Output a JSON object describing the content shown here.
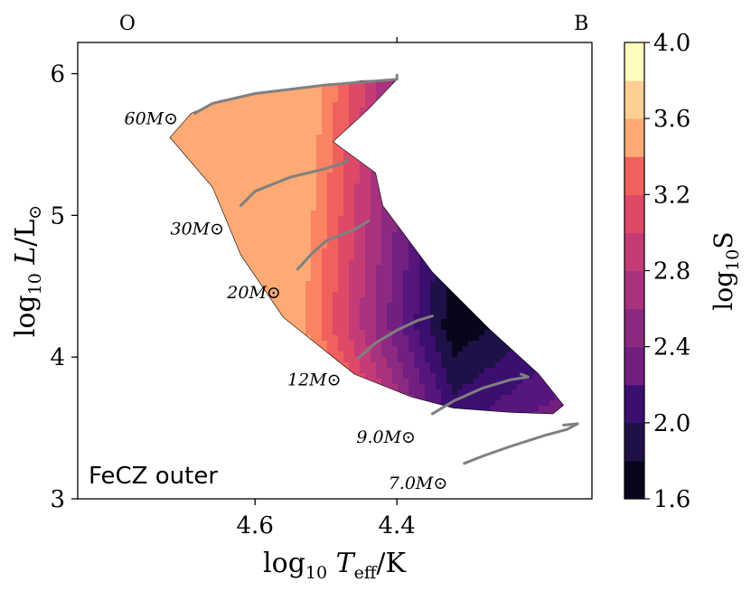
{
  "chart_data": {
    "type": "heatmap",
    "panel_label": "FeCZ outer",
    "xlabel": "log10 Teff/K",
    "ylabel": "log10 L/L⊙",
    "xlim": [
      4.85,
      4.125
    ],
    "ylim": [
      3.0,
      6.22
    ],
    "x_ticks": [
      4.6,
      4.4
    ],
    "x_tick_labels": [
      "4.6",
      "4.4"
    ],
    "y_ticks": [
      3,
      4,
      5,
      6
    ],
    "y_tick_labels": [
      "3",
      "4",
      "5",
      "6"
    ],
    "spectral_types": [
      {
        "label": "O",
        "logT": 4.78
      },
      {
        "label": "B",
        "logT": 4.14
      }
    ],
    "top_minor_tick_logT": 4.4,
    "colorbar": {
      "label": "log10S",
      "min": 1.6,
      "max": 4.0,
      "step": 0.2,
      "tick_values": [
        1.6,
        2.0,
        2.4,
        2.8,
        3.2,
        3.6,
        4.0
      ],
      "tick_labels": [
        "1.6",
        "2.0",
        "2.4",
        "2.8",
        "3.2",
        "3.6",
        "4.0"
      ],
      "level_colors": [
        "#08061d",
        "#1f1047",
        "#3b0f70",
        "#57157e",
        "#721f81",
        "#8c2981",
        "#a8327d",
        "#c43c75",
        "#de4968",
        "#f1605d",
        "#fa8362",
        "#feaa74",
        "#fecf92",
        "#fcfdbf"
      ]
    },
    "tracks": [
      {
        "label": "60M⊙",
        "points": [
          [
            4.685,
            5.72
          ],
          [
            4.66,
            5.79
          ],
          [
            4.6,
            5.86
          ],
          [
            4.5,
            5.92
          ],
          [
            4.4,
            5.96
          ],
          [
            4.4,
            5.99
          ]
        ]
      },
      {
        "label": "30M⊙",
        "points": [
          [
            4.62,
            5.07
          ],
          [
            4.6,
            5.17
          ],
          [
            4.55,
            5.27
          ],
          [
            4.5,
            5.33
          ],
          [
            4.47,
            5.38
          ],
          [
            4.47,
            5.4
          ]
        ]
      },
      {
        "label": "20M⊙",
        "points": [
          [
            4.54,
            4.62
          ],
          [
            4.52,
            4.73
          ],
          [
            4.5,
            4.82
          ],
          [
            4.46,
            4.9
          ],
          [
            4.44,
            4.96
          ]
        ]
      },
      {
        "label": "12M⊙",
        "points": [
          [
            4.455,
            3.99
          ],
          [
            4.43,
            4.1
          ],
          [
            4.4,
            4.19
          ],
          [
            4.37,
            4.26
          ],
          [
            4.35,
            4.29
          ]
        ]
      },
      {
        "label": "9.0M⊙",
        "points": [
          [
            4.35,
            3.6
          ],
          [
            4.32,
            3.69
          ],
          [
            4.28,
            3.78
          ],
          [
            4.24,
            3.84
          ],
          [
            4.215,
            3.86
          ],
          [
            4.225,
            3.88
          ]
        ]
      },
      {
        "label": "7.0M⊙",
        "points": [
          [
            4.305,
            3.25
          ],
          [
            4.28,
            3.3
          ],
          [
            4.24,
            3.37
          ],
          [
            4.19,
            3.45
          ],
          [
            4.16,
            3.49
          ],
          [
            4.145,
            3.53
          ],
          [
            4.165,
            3.52
          ]
        ]
      }
    ],
    "boundary_logT_logL": [
      [
        4.69,
        5.72
      ],
      [
        4.65,
        5.81
      ],
      [
        4.58,
        5.87
      ],
      [
        4.48,
        5.93
      ],
      [
        4.45,
        5.95
      ],
      [
        4.4,
        5.96
      ],
      [
        4.44,
        5.75
      ],
      [
        4.49,
        5.52
      ],
      [
        4.43,
        5.3
      ],
      [
        4.42,
        5.07
      ],
      [
        4.35,
        4.6
      ],
      [
        4.27,
        4.2
      ],
      [
        4.2,
        3.88
      ],
      [
        4.165,
        3.66
      ],
      [
        4.18,
        3.6
      ],
      [
        4.24,
        3.61
      ],
      [
        4.32,
        3.64
      ],
      [
        4.38,
        3.72
      ],
      [
        4.46,
        3.88
      ],
      [
        4.56,
        4.28
      ],
      [
        4.62,
        4.72
      ],
      [
        4.66,
        5.2
      ],
      [
        4.72,
        5.55
      ]
    ],
    "field_model": {
      "description": "approximate log10 S field sampled on a grid",
      "cold_center_logT_logL": [
        4.32,
        4.22
      ],
      "value_at_cold_center": 1.65
    }
  }
}
